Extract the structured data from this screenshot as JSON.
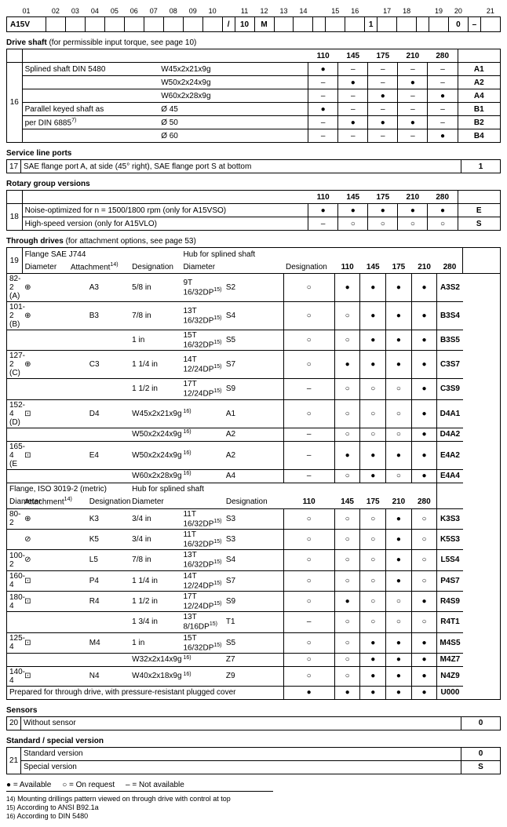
{
  "header_cols": [
    "01",
    "02",
    "03",
    "04",
    "05",
    "06",
    "07",
    "08",
    "09",
    "10",
    "",
    "11",
    "12",
    "13",
    "14",
    "",
    "15",
    "16",
    "",
    "17",
    "18",
    "",
    "19",
    "20",
    "",
    "21"
  ],
  "code_cells": [
    "A15V",
    "",
    "",
    "",
    "",
    "",
    "",
    "",
    "",
    "",
    "/",
    "10",
    "M",
    "",
    "",
    "",
    "",
    "",
    "1",
    "",
    "",
    "",
    "",
    "0",
    "–",
    ""
  ],
  "merge_first": 4,
  "drive_shaft": {
    "title": "Drive shaft",
    "title_note": "(for permissible input torque, see page 10)",
    "size_cols": [
      "110",
      "145",
      "175",
      "210",
      "280"
    ],
    "idx": "16",
    "rows": [
      {
        "lbl": "Splined shaft DIN 5480",
        "spec": "W45x2x21x9g",
        "a": [
          "●",
          "–",
          "–",
          "–",
          "–"
        ],
        "code": "A1"
      },
      {
        "lbl": "",
        "spec": "W50x2x24x9g",
        "a": [
          "–",
          "●",
          "–",
          "●",
          "–"
        ],
        "code": "A2"
      },
      {
        "lbl": "",
        "spec": "W60x2x28x9g",
        "a": [
          "–",
          "–",
          "●",
          "–",
          "●"
        ],
        "code": "A4"
      },
      {
        "lbl": "Parallel keyed shaft as",
        "spec": "Ø 45",
        "a": [
          "●",
          "–",
          "–",
          "–",
          "–"
        ],
        "code": "B1"
      },
      {
        "lbl": "per DIN 6885",
        "sup": "7)",
        "spec": "Ø 50",
        "a": [
          "–",
          "●",
          "●",
          "●",
          "–"
        ],
        "code": "B2"
      },
      {
        "lbl": "",
        "spec": "Ø 60",
        "a": [
          "–",
          "–",
          "–",
          "–",
          "●"
        ],
        "code": "B4"
      }
    ]
  },
  "service_line": {
    "title": "Service line ports",
    "idx": "17",
    "text": "SAE flange port A, at side (45° right), SAE flange port S at bottom",
    "code": "1"
  },
  "rotary": {
    "title": "Rotary group versions",
    "size_cols": [
      "110",
      "145",
      "175",
      "210",
      "280"
    ],
    "idx": "18",
    "rows": [
      {
        "lbl": "Noise-optimized for n = 1500/1800 rpm (only for A15VSO)",
        "a": [
          "●",
          "●",
          "●",
          "●",
          "●"
        ],
        "code": "E"
      },
      {
        "lbl": "High-speed version (only for A15VLO)",
        "a": [
          "–",
          "○",
          "○",
          "○",
          "○"
        ],
        "code": "S"
      }
    ]
  },
  "through": {
    "title": "Through drives",
    "title_note": "(for attachment options, see page 53)",
    "idx": "19",
    "flange_sae": "Flange SAE J744",
    "hub_splined": "Hub for splined shaft",
    "col_diam": "Diameter",
    "col_att": "Attachment",
    "col_att_sup": "14)",
    "col_desig": "Designation",
    "size_cols": [
      "110",
      "145",
      "175",
      "210",
      "280"
    ],
    "sae_rows": [
      {
        "d": "82-2 (A)",
        "sym": "⊕",
        "des": "A3",
        "hd": "5/8 in",
        "hs": "9T 16/32DP",
        "hsup": "15)",
        "hdes": "S2",
        "a": [
          "○",
          "●",
          "●",
          "●",
          "●"
        ],
        "code": "A3S2"
      },
      {
        "d": "101-2 (B)",
        "sym": "⊕",
        "des": "B3",
        "hd": "7/8 in",
        "hs": "13T 16/32DP",
        "hsup": "15)",
        "hdes": "S4",
        "a": [
          "○",
          "○",
          "●",
          "●",
          "●"
        ],
        "code": "B3S4"
      },
      {
        "d": "",
        "sym": "",
        "des": "",
        "hd": "1 in",
        "hs": "15T 16/32DP",
        "hsup": "15)",
        "hdes": "S5",
        "a": [
          "○",
          "○",
          "●",
          "●",
          "●"
        ],
        "code": "B3S5"
      },
      {
        "d": "127-2 (C)",
        "sym": "⊕",
        "des": "C3",
        "hd": "1 1/4 in",
        "hs": "14T 12/24DP",
        "hsup": "15)",
        "hdes": "S7",
        "a": [
          "○",
          "●",
          "●",
          "●",
          "●"
        ],
        "code": "C3S7"
      },
      {
        "d": "",
        "sym": "",
        "des": "",
        "hd": "1 1/2 in",
        "hs": "17T 12/24DP",
        "hsup": "15)",
        "hdes": "S9",
        "a": [
          "–",
          "○",
          "○",
          "○",
          "●"
        ],
        "code": "C3S9"
      },
      {
        "d": "152-4 (D)",
        "sym": "⊡",
        "des": "D4",
        "hd": "W45x2x21x9g",
        "hs": "",
        "hsup": "16)",
        "hdes": "A1",
        "a": [
          "○",
          "○",
          "○",
          "○",
          "●"
        ],
        "code": "D4A1"
      },
      {
        "d": "",
        "sym": "",
        "des": "",
        "hd": "W50x2x24x9g",
        "hs": "",
        "hsup": "16)",
        "hdes": "A2",
        "a": [
          "–",
          "○",
          "○",
          "○",
          "●"
        ],
        "code": "D4A2"
      },
      {
        "d": "165-4 (E",
        "sym": "⊡",
        "des": "E4",
        "hd": "W50x2x24x9g",
        "hs": "",
        "hsup": "16)",
        "hdes": "A2",
        "a": [
          "–",
          "●",
          "●",
          "●",
          "●"
        ],
        "code": "E4A2"
      },
      {
        "d": "",
        "sym": "",
        "des": "",
        "hd": "W60x2x28x9g",
        "hs": "",
        "hsup": "16)",
        "hdes": "A4",
        "a": [
          "–",
          "○",
          "●",
          "○",
          "●"
        ],
        "code": "E4A4"
      }
    ],
    "flange_iso": "Flange, ISO 3019-2 (metric)",
    "iso_rows": [
      {
        "d": "80-2",
        "sym": "⊕",
        "des": "K3",
        "hd": "3/4 in",
        "hs": "11T 16/32DP",
        "hsup": "15)",
        "hdes": "S3",
        "a": [
          "○",
          "○",
          "○",
          "●",
          "○"
        ],
        "code": "K3S3"
      },
      {
        "d": "",
        "sym": "⊘",
        "des": "K5",
        "hd": "3/4 in",
        "hs": "11T 16/32DP",
        "hsup": "15)",
        "hdes": "S3",
        "a": [
          "○",
          "○",
          "○",
          "●",
          "○"
        ],
        "code": "K5S3"
      },
      {
        "d": "100-2",
        "sym": "⊘",
        "des": "L5",
        "hd": "7/8 in",
        "hs": "13T 16/32DP",
        "hsup": "15)",
        "hdes": "S4",
        "a": [
          "○",
          "○",
          "○",
          "●",
          "○"
        ],
        "code": "L5S4"
      },
      {
        "d": "160-4",
        "sym": "⊡",
        "des": "P4",
        "hd": "1 1/4 in",
        "hs": "14T 12/24DP",
        "hsup": "15)",
        "hdes": "S7",
        "a": [
          "○",
          "○",
          "○",
          "●",
          "○"
        ],
        "code": "P4S7"
      },
      {
        "d": "180-4",
        "sym": "⊡",
        "des": "R4",
        "hd": "1 1/2 in",
        "hs": "17T 12/24DP",
        "hsup": "15)",
        "hdes": "S9",
        "a": [
          "○",
          "●",
          "○",
          "○",
          "●"
        ],
        "code": "R4S9"
      },
      {
        "d": "",
        "sym": "",
        "des": "",
        "hd": "1 3/4 in",
        "hs": "13T 8/16DP",
        "hsup": "15)",
        "hdes": "T1",
        "a": [
          "–",
          "○",
          "○",
          "○",
          "○"
        ],
        "code": "R4T1"
      },
      {
        "d": "125-4",
        "sym": "⊡",
        "des": "M4",
        "hd": "1 in",
        "hs": "15T 16/32DP",
        "hsup": "15)",
        "hdes": "S5",
        "a": [
          "○",
          "○",
          "●",
          "●",
          "●"
        ],
        "code": "M4S5"
      },
      {
        "d": "",
        "sym": "",
        "des": "",
        "hd": "W32x2x14x9g",
        "hs": "",
        "hsup": "16)",
        "hdes": "Z7",
        "a": [
          "○",
          "○",
          "●",
          "●",
          "●"
        ],
        "code": "M4Z7"
      },
      {
        "d": "140-4",
        "sym": "⊡",
        "des": "N4",
        "hd": "W40x2x18x9g",
        "hs": "",
        "hsup": "16)",
        "hdes": "Z9",
        "a": [
          "○",
          "○",
          "●",
          "●",
          "●"
        ],
        "code": "N4Z9"
      },
      {
        "d": "",
        "special": "Prepared for through drive, with pressure-resistant plugged cover",
        "a": [
          "●",
          "●",
          "●",
          "●",
          "●"
        ],
        "code": "U000"
      }
    ]
  },
  "sensors": {
    "title": "Sensors",
    "idx": "20",
    "text": "Without sensor",
    "code": "0"
  },
  "std": {
    "title": "Standard / special version",
    "idx": "21",
    "rows": [
      {
        "text": "Standard version",
        "code": "0"
      },
      {
        "text": "Special version",
        "code": "S"
      }
    ]
  },
  "legend": {
    "avail": "●  =  Available",
    "onreq": "○  =  On request",
    "na": "–  =  Not available"
  },
  "footnotes": [
    {
      "n": "14)",
      "t": "Mounting drillings pattern viewed on through drive with control at top"
    },
    {
      "n": "15)",
      "t": "According to ANSI B92.1a"
    },
    {
      "n": "16)",
      "t": "According to DIN 5480"
    }
  ]
}
